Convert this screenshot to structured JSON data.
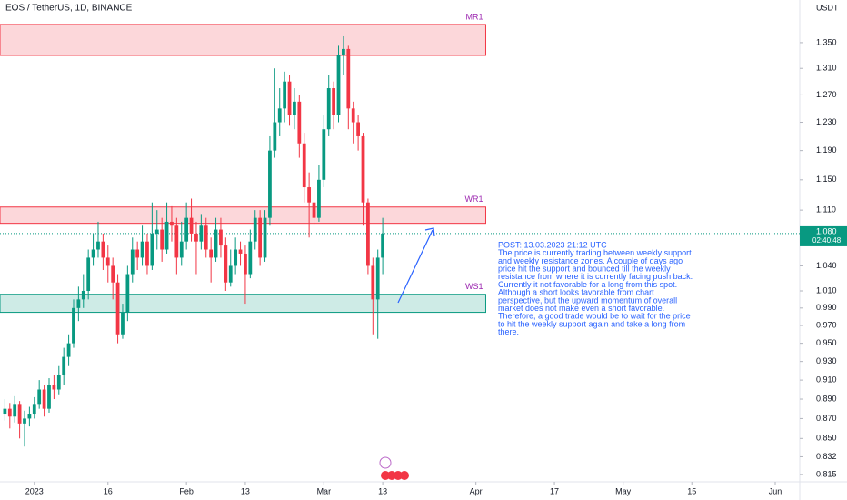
{
  "chart_data": {
    "type": "candlestick",
    "title": "EOS / TetherUS, 1D, BINANCE",
    "y_axis_label": "USDT",
    "log_scale": true,
    "up_color": "#089981",
    "down_color": "#f23645",
    "xlim": [
      "2022-12-25",
      "2023-06-06"
    ],
    "xticks": [
      {
        "value": "2023-01-01",
        "label": "2023"
      },
      {
        "value": "2023-01-16",
        "label": "16"
      },
      {
        "value": "2023-02-01",
        "label": "Feb"
      },
      {
        "value": "2023-02-13",
        "label": "13"
      },
      {
        "value": "2023-03-01",
        "label": "Mar"
      },
      {
        "value": "2023-03-13",
        "label": "13"
      },
      {
        "value": "2023-04-01",
        "label": "Apr"
      },
      {
        "value": "2023-04-17",
        "label": "17"
      },
      {
        "value": "2023-05-01",
        "label": "May"
      },
      {
        "value": "2023-05-15",
        "label": "15"
      },
      {
        "value": "2023-06-01",
        "label": "Jun"
      }
    ],
    "ylim": [
      0.808,
      1.419
    ],
    "yticks": [
      {
        "value": 1.35,
        "label": "1.350"
      },
      {
        "value": 1.31,
        "label": "1.310"
      },
      {
        "value": 1.27,
        "label": "1.270"
      },
      {
        "value": 1.23,
        "label": "1.230"
      },
      {
        "value": 1.19,
        "label": "1.190"
      },
      {
        "value": 1.15,
        "label": "1.150"
      },
      {
        "value": 1.11,
        "label": "1.110"
      },
      {
        "value": 1.04,
        "label": "1.040"
      },
      {
        "value": 1.01,
        "label": "1.010"
      },
      {
        "value": 0.99,
        "label": "0.990"
      },
      {
        "value": 0.97,
        "label": "0.970"
      },
      {
        "value": 0.95,
        "label": "0.950"
      },
      {
        "value": 0.93,
        "label": "0.930"
      },
      {
        "value": 0.91,
        "label": "0.910"
      },
      {
        "value": 0.89,
        "label": "0.890"
      },
      {
        "value": 0.87,
        "label": "0.870"
      },
      {
        "value": 0.85,
        "label": "0.850"
      },
      {
        "value": 0.832,
        "label": "0.832"
      },
      {
        "value": 0.815,
        "label": "0.815"
      }
    ],
    "x": [
      "2022-12-26",
      "2022-12-27",
      "2022-12-28",
      "2022-12-29",
      "2022-12-30",
      "2022-12-31",
      "2023-01-01",
      "2023-01-02",
      "2023-01-03",
      "2023-01-04",
      "2023-01-05",
      "2023-01-06",
      "2023-01-07",
      "2023-01-08",
      "2023-01-09",
      "2023-01-10",
      "2023-01-11",
      "2023-01-12",
      "2023-01-13",
      "2023-01-14",
      "2023-01-15",
      "2023-01-16",
      "2023-01-17",
      "2023-01-18",
      "2023-01-19",
      "2023-01-20",
      "2023-01-21",
      "2023-01-22",
      "2023-01-23",
      "2023-01-24",
      "2023-01-25",
      "2023-01-26",
      "2023-01-27",
      "2023-01-28",
      "2023-01-29",
      "2023-01-30",
      "2023-01-31",
      "2023-02-01",
      "2023-02-02",
      "2023-02-03",
      "2023-02-04",
      "2023-02-05",
      "2023-02-06",
      "2023-02-07",
      "2023-02-08",
      "2023-02-09",
      "2023-02-10",
      "2023-02-11",
      "2023-02-12",
      "2023-02-13",
      "2023-02-14",
      "2023-02-15",
      "2023-02-16",
      "2023-02-17",
      "2023-02-18",
      "2023-02-19",
      "2023-02-20",
      "2023-02-21",
      "2023-02-22",
      "2023-02-23",
      "2023-02-24",
      "2023-02-25",
      "2023-02-26",
      "2023-02-27",
      "2023-02-28",
      "2023-03-01",
      "2023-03-02",
      "2023-03-03",
      "2023-03-04",
      "2023-03-05",
      "2023-03-06",
      "2023-03-07",
      "2023-03-08",
      "2023-03-09",
      "2023-03-10",
      "2023-03-11",
      "2023-03-12",
      "2023-03-13"
    ],
    "open": [
      0.875,
      0.88,
      0.872,
      0.885,
      0.865,
      0.87,
      0.875,
      0.885,
      0.9,
      0.88,
      0.905,
      0.9,
      0.915,
      0.935,
      0.95,
      0.99,
      1.0,
      1.01,
      1.05,
      1.06,
      1.07,
      1.05,
      1.04,
      1.02,
      0.96,
      0.985,
      1.03,
      1.06,
      1.05,
      1.07,
      1.04,
      1.08,
      1.085,
      1.06,
      1.095,
      1.09,
      1.05,
      1.07,
      1.1,
      1.08,
      1.07,
      1.09,
      1.06,
      1.05,
      1.085,
      1.065,
      1.02,
      1.04,
      1.06,
      1.055,
      1.03,
      1.07,
      1.1,
      1.05,
      1.1,
      1.19,
      1.23,
      1.25,
      1.29,
      1.24,
      1.26,
      1.2,
      1.14,
      1.12,
      1.1,
      1.15,
      1.22,
      1.28,
      1.24,
      1.33,
      1.34,
      1.25,
      1.23,
      1.21,
      1.12,
      1.04,
      1.0,
      1.05
    ],
    "high": [
      0.89,
      0.886,
      0.893,
      0.888,
      0.878,
      0.882,
      0.892,
      0.91,
      0.905,
      0.912,
      0.915,
      0.925,
      0.945,
      0.96,
      1.0,
      1.015,
      1.03,
      1.06,
      1.08,
      1.095,
      1.08,
      1.065,
      1.05,
      1.03,
      0.995,
      1.04,
      1.075,
      1.07,
      1.09,
      1.08,
      1.12,
      1.11,
      1.1,
      1.12,
      1.115,
      1.1,
      1.095,
      1.12,
      1.125,
      1.095,
      1.105,
      1.1,
      1.075,
      1.1,
      1.1,
      1.075,
      1.06,
      1.075,
      1.07,
      1.065,
      1.085,
      1.11,
      1.11,
      1.11,
      1.21,
      1.31,
      1.28,
      1.305,
      1.3,
      1.28,
      1.27,
      1.215,
      1.16,
      1.14,
      1.17,
      1.24,
      1.3,
      1.29,
      1.345,
      1.36,
      1.345,
      1.26,
      1.24,
      1.215,
      1.125,
      1.05,
      1.06,
      1.1
    ],
    "low": [
      0.868,
      0.86,
      0.866,
      0.85,
      0.842,
      0.862,
      0.87,
      0.88,
      0.872,
      0.876,
      0.89,
      0.895,
      0.905,
      0.925,
      0.945,
      0.975,
      0.99,
      1.0,
      1.04,
      1.05,
      1.035,
      1.02,
      1.0,
      0.95,
      0.955,
      0.975,
      1.02,
      1.035,
      1.04,
      1.03,
      1.035,
      1.06,
      1.045,
      1.055,
      1.07,
      1.03,
      1.04,
      1.06,
      1.07,
      1.03,
      1.06,
      1.05,
      1.02,
      1.045,
      1.05,
      1.01,
      1.015,
      1.03,
      1.04,
      0.995,
      1.025,
      1.06,
      1.04,
      1.045,
      1.09,
      1.18,
      1.21,
      1.23,
      1.225,
      1.22,
      1.18,
      1.12,
      1.075,
      1.09,
      1.095,
      1.14,
      1.21,
      1.22,
      1.23,
      1.3,
      1.22,
      1.2,
      1.19,
      1.09,
      1.03,
      0.96,
      0.955,
      1.03
    ],
    "close": [
      0.88,
      0.872,
      0.885,
      0.865,
      0.87,
      0.875,
      0.885,
      0.9,
      0.88,
      0.905,
      0.9,
      0.915,
      0.935,
      0.95,
      0.99,
      1.0,
      1.01,
      1.05,
      1.06,
      1.07,
      1.05,
      1.04,
      1.02,
      0.96,
      0.985,
      1.03,
      1.06,
      1.05,
      1.07,
      1.04,
      1.08,
      1.085,
      1.06,
      1.095,
      1.09,
      1.05,
      1.07,
      1.1,
      1.08,
      1.07,
      1.09,
      1.06,
      1.05,
      1.085,
      1.065,
      1.02,
      1.04,
      1.06,
      1.055,
      1.03,
      1.07,
      1.1,
      1.05,
      1.1,
      1.19,
      1.23,
      1.25,
      1.29,
      1.24,
      1.26,
      1.2,
      1.14,
      1.12,
      1.1,
      1.15,
      1.22,
      1.28,
      1.24,
      1.33,
      1.34,
      1.25,
      1.23,
      1.21,
      1.12,
      1.04,
      1.0,
      1.05,
      1.08
    ],
    "zones": [
      {
        "name": "MR1",
        "top": 1.379,
        "bottom": 1.33,
        "end": "2023-04-03",
        "color": "#f23645"
      },
      {
        "name": "WR1",
        "top": 1.114,
        "bottom": 1.093,
        "end": "2023-04-03",
        "color": "#f23645"
      },
      {
        "name": "WS1",
        "top": 1.006,
        "bottom": 0.985,
        "end": "2023-04-03",
        "color": "#089981"
      }
    ],
    "last_price": {
      "value": 1.08,
      "label": "1.080",
      "countdown": "02:40:48"
    },
    "annotation": [
      "POST: 13.03.2023 21:12 UTC",
      "The price is currently trading between weekly support",
      "and weekly resistance zones. A couple of days ago",
      "price hit the support and bounced till the weekly",
      "resistance from where it is currently facing push back.",
      "Currently it not favorable for a long from this spot.",
      "Although a short looks favorable from chart",
      "perspective, but the upward momentum of overall",
      "market does not make even a short favorable.",
      "Therefore, a good trade would be to wait for the price",
      "to hit the weekly support again and take a long from",
      "there."
    ]
  }
}
